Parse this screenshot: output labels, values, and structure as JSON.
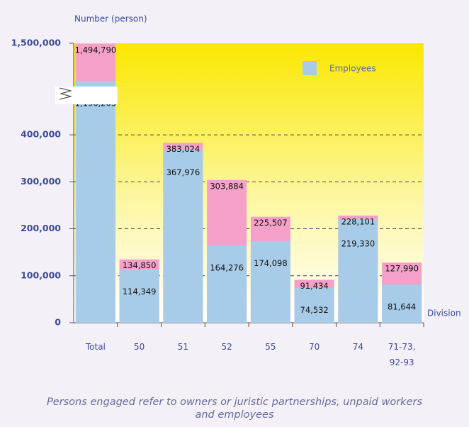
{
  "chart_data": {
    "type": "bar",
    "y_label": "Number (person)",
    "x_label": "Division",
    "categories": [
      "Total",
      "50",
      "51",
      "52",
      "55",
      "70",
      "74",
      "71-73, 92-93"
    ],
    "series": [
      {
        "name": "Employees",
        "color": "#a8cce8",
        "values": [
          1196205,
          114349,
          367976,
          164276,
          174098,
          74532,
          219330,
          81644
        ],
        "value_labels": [
          "1,196,205",
          "114,349",
          "367,976",
          "164,276",
          "174,098",
          "74,532",
          "219,330",
          "81,644"
        ]
      },
      {
        "color": "#f4a0c8",
        "values": [
          1494790,
          134850,
          383024,
          303884,
          225507,
          91434,
          228101,
          127990
        ],
        "value_labels": [
          "1,494,790",
          "134,850",
          "383,024",
          "303,884",
          "225,507",
          "91,434",
          "228,101",
          "127,990"
        ]
      }
    ],
    "ylim": [
      0,
      1500000
    ],
    "ybreak": [
      450000,
      1150000
    ],
    "yticks": [
      {
        "value": 0,
        "label": "0"
      },
      {
        "value": 100000,
        "label": "100,000"
      },
      {
        "value": 200000,
        "label": "200,000"
      },
      {
        "value": 300000,
        "label": "300,000"
      },
      {
        "value": 400000,
        "label": "400,000"
      },
      {
        "value": 1500000,
        "label": "1,500,000"
      }
    ],
    "grid": true,
    "note": "Persons engaged refer to owners or juristic partnerships, unpaid workers and employees"
  }
}
